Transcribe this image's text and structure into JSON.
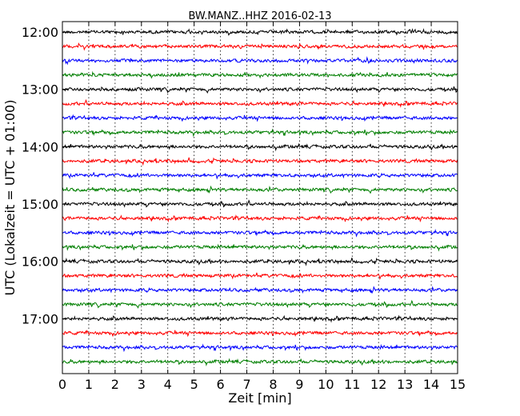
{
  "chart_data": {
    "type": "line",
    "title": "BW.MANZ..HHZ 2016-02-13",
    "xlabel": "Zeit  [min]",
    "ylabel": "UTC (Lokalzeit = UTC + 01:00)",
    "xlim": [
      0,
      15
    ],
    "x_ticks": [
      "0",
      "1",
      "2",
      "3",
      "4",
      "5",
      "6",
      "7",
      "8",
      "9",
      "10",
      "11",
      "12",
      "13",
      "14",
      "15"
    ],
    "y_ticks": [
      "12:00",
      "13:00",
      "14:00",
      "15:00",
      "16:00",
      "17:00"
    ],
    "grid": "vertical dotted",
    "trace_colors": [
      "#000000",
      "#ff0000",
      "#0000ff",
      "#007f00"
    ],
    "series": [
      {
        "start": "12:00",
        "color": "#000000"
      },
      {
        "start": "12:15",
        "color": "#ff0000"
      },
      {
        "start": "12:30",
        "color": "#0000ff"
      },
      {
        "start": "12:45",
        "color": "#007f00"
      },
      {
        "start": "13:00",
        "color": "#000000"
      },
      {
        "start": "13:15",
        "color": "#ff0000"
      },
      {
        "start": "13:30",
        "color": "#0000ff"
      },
      {
        "start": "13:45",
        "color": "#007f00"
      },
      {
        "start": "14:00",
        "color": "#000000"
      },
      {
        "start": "14:15",
        "color": "#ff0000"
      },
      {
        "start": "14:30",
        "color": "#0000ff"
      },
      {
        "start": "14:45",
        "color": "#007f00"
      },
      {
        "start": "15:00",
        "color": "#000000"
      },
      {
        "start": "15:15",
        "color": "#ff0000"
      },
      {
        "start": "15:30",
        "color": "#0000ff"
      },
      {
        "start": "15:45",
        "color": "#007f00"
      },
      {
        "start": "16:00",
        "color": "#000000"
      },
      {
        "start": "16:15",
        "color": "#ff0000"
      },
      {
        "start": "16:30",
        "color": "#0000ff"
      },
      {
        "start": "16:45",
        "color": "#007f00"
      },
      {
        "start": "17:00",
        "color": "#000000"
      },
      {
        "start": "17:15",
        "color": "#ff0000"
      },
      {
        "start": "17:30",
        "color": "#0000ff"
      },
      {
        "start": "17:45",
        "color": "#007f00"
      }
    ]
  }
}
